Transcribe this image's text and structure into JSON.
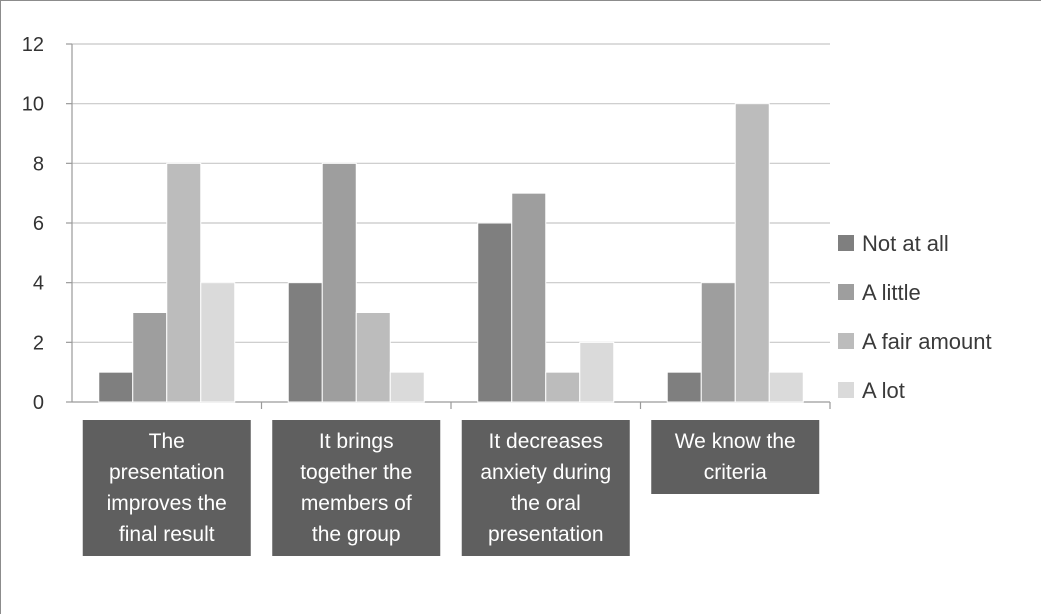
{
  "chart_data": {
    "type": "bar",
    "categories": [
      [
        "The",
        "presentation",
        "improves the",
        "final result"
      ],
      [
        "It brings",
        "together the",
        "members of",
        "the group"
      ],
      [
        "It decreases",
        "anxiety during",
        "the oral",
        "presentation"
      ],
      [
        "We know the",
        "criteria"
      ]
    ],
    "series": [
      {
        "name": "Not at all",
        "values": [
          1,
          4,
          6,
          1
        ],
        "color": "#7f7f7f"
      },
      {
        "name": "A little",
        "values": [
          3,
          8,
          7,
          4
        ],
        "color": "#9e9e9e"
      },
      {
        "name": "A fair amount",
        "values": [
          8,
          3,
          1,
          10
        ],
        "color": "#bcbcbc"
      },
      {
        "name": "A lot",
        "values": [
          4,
          1,
          2,
          1
        ],
        "color": "#dadada"
      }
    ],
    "ylim": [
      0,
      12
    ],
    "yticks": [
      "0",
      "2",
      "4",
      "6",
      "8",
      "10",
      "12"
    ],
    "grid": true,
    "legend": "right",
    "category_label_box_color": "#5f5f5f"
  }
}
